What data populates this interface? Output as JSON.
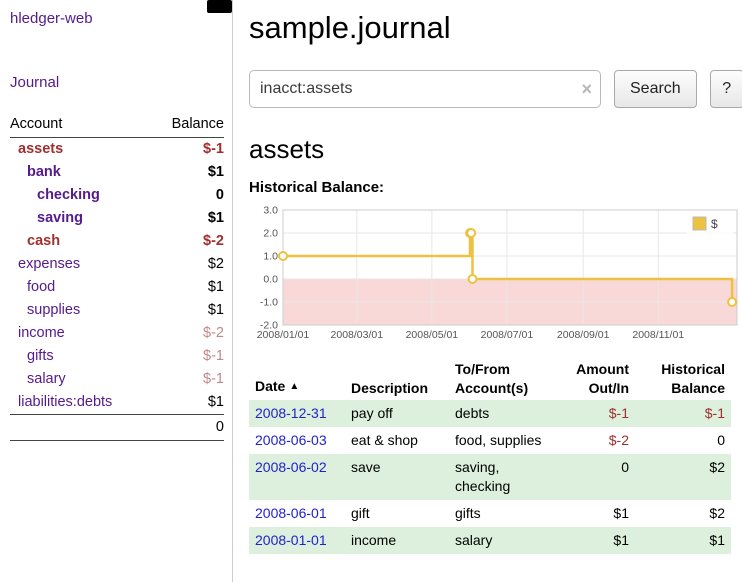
{
  "app": {
    "title": "hledger-web"
  },
  "colors": {
    "link_purple": "#551a8b",
    "date_blue": "#2222cc",
    "negative_red": "#a03030",
    "muted_negative": "#c28989",
    "row_green": "#ddf0dd",
    "chart_line": "#edc240",
    "chart_negative_band": "#f9d9d7"
  },
  "sidebar": {
    "journal_label": "Journal",
    "table": {
      "account_header": "Account",
      "balance_header": "Balance",
      "rows": [
        {
          "account": "assets",
          "balance": "$-1"
        },
        {
          "account": "bank",
          "balance": "$1"
        },
        {
          "account": "checking",
          "balance": "0"
        },
        {
          "account": "saving",
          "balance": "$1"
        },
        {
          "account": "cash",
          "balance": "$-2"
        },
        {
          "account": "expenses",
          "balance": "$2"
        },
        {
          "account": "food",
          "balance": "$1"
        },
        {
          "account": "supplies",
          "balance": "$1"
        },
        {
          "account": "income",
          "balance": "$-2"
        },
        {
          "account": "gifts",
          "balance": "$-1"
        },
        {
          "account": "salary",
          "balance": "$-1"
        },
        {
          "account": "liabilities:debts",
          "balance": "$1"
        }
      ],
      "total": "0"
    }
  },
  "main": {
    "title": "sample.journal",
    "search": {
      "value": "inacct:assets",
      "clear_icon": "×",
      "button_label": "Search",
      "help_label": "?"
    },
    "section_title": "assets",
    "chart_label": "Historical Balance:"
  },
  "chart_data": {
    "type": "line",
    "subtype": "step",
    "title": "Historical Balance",
    "legend_position": "top-right",
    "grid": true,
    "ylim": [
      -2,
      3
    ],
    "yticks": [
      3,
      2,
      1,
      0,
      -1,
      -2
    ],
    "ytick_labels": [
      "3.0",
      "2.0",
      "1.0",
      "0.0",
      "-1.0",
      "-2.0"
    ],
    "x_range": [
      "2008-01-01",
      "2009-01-04"
    ],
    "xticks": [
      {
        "date": "2008-01-01",
        "label": "2008/01/01"
      },
      {
        "date": "2008-03-01",
        "label": "2008/03/01"
      },
      {
        "date": "2008-05-01",
        "label": "2008/05/01"
      },
      {
        "date": "2008-07-01",
        "label": "2008/07/01"
      },
      {
        "date": "2008-09-01",
        "label": "2008/09/01"
      },
      {
        "date": "2008-11-01",
        "label": "2008/11/01"
      }
    ],
    "series": [
      {
        "name": "$",
        "color": "#edc240",
        "points": [
          {
            "x": "2008-01-01",
            "y": 1
          },
          {
            "x": "2008-06-01",
            "y": 2
          },
          {
            "x": "2008-06-02",
            "y": 2
          },
          {
            "x": "2008-06-03",
            "y": 0
          },
          {
            "x": "2008-12-31",
            "y": -1
          }
        ]
      }
    ],
    "negative_region": {
      "from": 0,
      "to": -2,
      "color": "#f9d9d7"
    }
  },
  "register": {
    "headers": {
      "date": "Date",
      "sort_icon": "▲",
      "description": "Description",
      "tofrom": "To/From Account(s)",
      "amount": "Amount Out/In",
      "balance": "Historical Balance"
    },
    "rows": [
      {
        "date": "2008-12-31",
        "description": "pay off",
        "tofrom": "debts",
        "amount": "$-1",
        "balance": "$-1"
      },
      {
        "date": "2008-06-03",
        "description": "eat & shop",
        "tofrom": "food, supplies",
        "amount": "$-2",
        "balance": "0"
      },
      {
        "date": "2008-06-02",
        "description": "save",
        "tofrom": "saving, checking",
        "amount": "0",
        "balance": "$2"
      },
      {
        "date": "2008-06-01",
        "description": "gift",
        "tofrom": "gifts",
        "amount": "$1",
        "balance": "$2"
      },
      {
        "date": "2008-01-01",
        "description": "income",
        "tofrom": "salary",
        "amount": "$1",
        "balance": "$1"
      }
    ]
  }
}
